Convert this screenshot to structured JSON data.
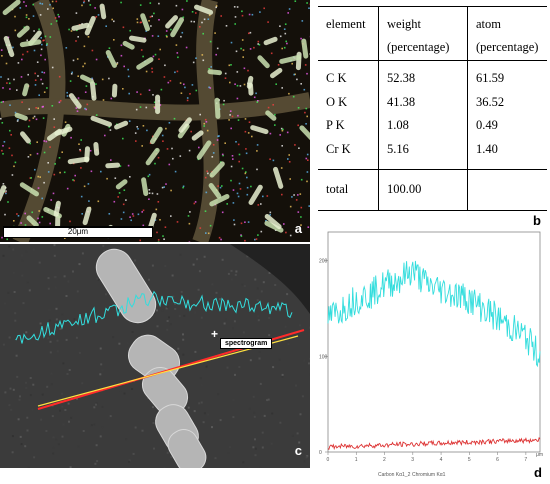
{
  "panel_a": {
    "letter": "a",
    "scale_bar": "20μm"
  },
  "panel_b": {
    "letter": "b",
    "headers": {
      "col1": "element",
      "col2_line1": "weight",
      "col2_line2": "(percentage)",
      "col3_line1": "atom",
      "col3_line2": "(percentage)"
    },
    "rows": [
      {
        "element": "C K",
        "weight": "52.38",
        "atom": "61.59"
      },
      {
        "element": "O K",
        "weight": "41.38",
        "atom": "36.52"
      },
      {
        "element": "P K",
        "weight": "1.08",
        "atom": "0.49"
      },
      {
        "element": "Cr K",
        "weight": "5.16",
        "atom": "1.40"
      }
    ],
    "total_label": "total",
    "total_weight": "100.00",
    "total_atom": ""
  },
  "panel_c": {
    "letter": "c",
    "spectrogram_label": "spectrogram"
  },
  "panel_d": {
    "letter": "d",
    "legend_carbon": "Carbon Kα1_2",
    "legend_chromium": "Chromium Kα1",
    "x_unit": "μm",
    "colors": {
      "carbon": "#33dddd",
      "chromium": "#dd3333"
    },
    "chart_data": {
      "type": "line",
      "x": [
        0,
        0.5,
        1,
        1.5,
        2,
        2.5,
        3,
        3.5,
        4,
        4.5,
        5,
        5.5,
        6,
        6.5,
        7,
        7.5
      ],
      "series": [
        {
          "name": "Carbon Kα1_2",
          "values": [
            140,
            150,
            160,
            165,
            175,
            180,
            190,
            175,
            170,
            165,
            160,
            150,
            140,
            130,
            120,
            100
          ]
        },
        {
          "name": "Chromium Kα1",
          "values": [
            5,
            6,
            6,
            7,
            7,
            8,
            8,
            9,
            9,
            10,
            10,
            11,
            11,
            12,
            12,
            13
          ]
        }
      ],
      "x_ticks": [
        "0",
        "1",
        "2",
        "3",
        "4",
        "5",
        "6",
        "7"
      ],
      "y_ticks": [
        "0",
        "100",
        "200"
      ],
      "xlim": [
        0,
        7.5
      ],
      "ylim": [
        0,
        230
      ]
    }
  }
}
